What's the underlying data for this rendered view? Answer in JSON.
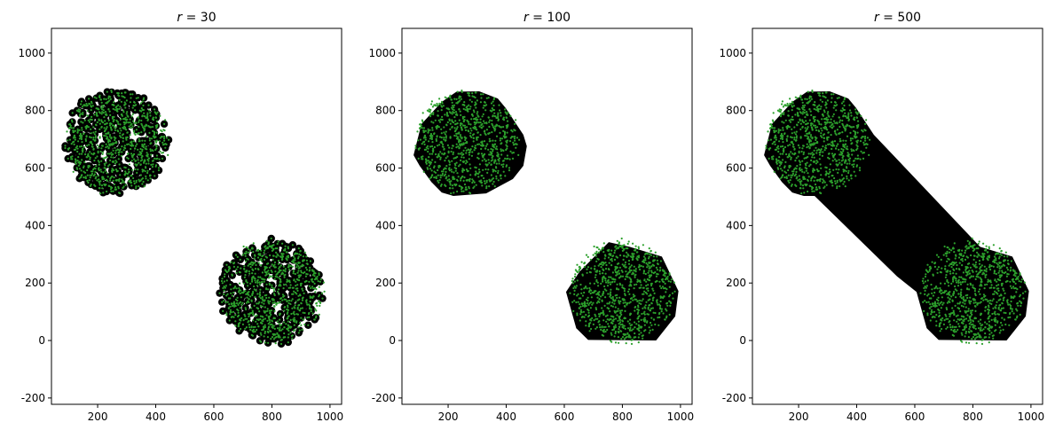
{
  "chart_data": [
    {
      "type": "scatter",
      "title": "r = 30",
      "alpha_r": 30,
      "xlim": [
        41,
        1040
      ],
      "ylim": [
        -222,
        1086
      ],
      "xticks": [
        200,
        400,
        600,
        800,
        1000
      ],
      "yticks": [
        -200,
        0,
        200,
        400,
        600,
        800,
        1000
      ],
      "grid": false,
      "point_color": "#2ca02c",
      "shape_color": "#000000",
      "clusters": [
        {
          "center": [
            265,
            690
          ],
          "radius": 180,
          "n": 900
        },
        {
          "center": [
            800,
            170
          ],
          "radius": 180,
          "n": 900
        }
      ],
      "shape": "concave-with-holes"
    },
    {
      "type": "scatter",
      "title": "r = 100",
      "alpha_r": 100,
      "xlim": [
        41,
        1040
      ],
      "ylim": [
        -222,
        1086
      ],
      "xticks": [
        200,
        400,
        600,
        800,
        1000
      ],
      "yticks": [
        -200,
        0,
        200,
        400,
        600,
        800,
        1000
      ],
      "grid": false,
      "point_color": "#2ca02c",
      "shape_color": "#000000",
      "clusters": [
        {
          "center": [
            265,
            690
          ],
          "radius": 180,
          "n": 900
        },
        {
          "center": [
            800,
            170
          ],
          "radius": 180,
          "n": 900
        }
      ],
      "polygons": [
        [
          [
            229,
            866
          ],
          [
            307,
            867
          ],
          [
            371,
            842
          ],
          [
            398,
            809
          ],
          [
            459,
            716
          ],
          [
            471,
            676
          ],
          [
            459,
            608
          ],
          [
            423,
            562
          ],
          [
            331,
            512
          ],
          [
            218,
            503
          ],
          [
            178,
            515
          ],
          [
            142,
            552
          ],
          [
            102,
            608
          ],
          [
            81,
            645
          ],
          [
            108,
            753
          ],
          [
            178,
            830
          ]
        ],
        [
          [
            753,
            342
          ],
          [
            825,
            326
          ],
          [
            936,
            292
          ],
          [
            993,
            172
          ],
          [
            982,
            84
          ],
          [
            916,
            0
          ],
          [
            682,
            2
          ],
          [
            641,
            43
          ],
          [
            606,
            169
          ],
          [
            652,
            239
          ]
        ]
      ]
    },
    {
      "type": "scatter",
      "title": "r = 500",
      "alpha_r": 500,
      "xlim": [
        41,
        1040
      ],
      "ylim": [
        -222,
        1086
      ],
      "xticks": [
        200,
        400,
        600,
        800,
        1000
      ],
      "yticks": [
        -200,
        0,
        200,
        400,
        600,
        800,
        1000
      ],
      "grid": false,
      "point_color": "#2ca02c",
      "shape_color": "#000000",
      "clusters": [
        {
          "center": [
            265,
            690
          ],
          "radius": 180,
          "n": 900
        },
        {
          "center": [
            800,
            170
          ],
          "radius": 180,
          "n": 900
        }
      ],
      "polygons": [
        [
          [
            229,
            866
          ],
          [
            307,
            867
          ],
          [
            371,
            842
          ],
          [
            398,
            809
          ],
          [
            459,
            716
          ],
          [
            825,
            326
          ],
          [
            936,
            292
          ],
          [
            993,
            172
          ],
          [
            982,
            84
          ],
          [
            916,
            0
          ],
          [
            682,
            2
          ],
          [
            641,
            43
          ],
          [
            606,
            169
          ],
          [
            539,
            223
          ],
          [
            255,
            503
          ],
          [
            218,
            503
          ],
          [
            178,
            515
          ],
          [
            142,
            552
          ],
          [
            102,
            608
          ],
          [
            81,
            645
          ],
          [
            108,
            753
          ],
          [
            178,
            830
          ]
        ]
      ]
    }
  ]
}
